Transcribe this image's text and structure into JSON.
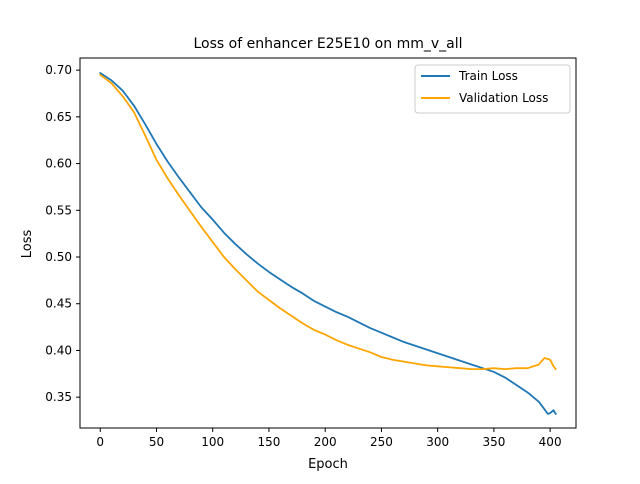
{
  "chart_data": {
    "type": "line",
    "title": "Loss of enhancer E25E10 on mm_v_all",
    "xlabel": "Epoch",
    "ylabel": "Loss",
    "xlim": [
      -18,
      423
    ],
    "ylim": [
      0.317,
      0.713
    ],
    "xticks": [
      0,
      50,
      100,
      150,
      200,
      250,
      300,
      350,
      400
    ],
    "xtick_labels": [
      "0",
      "50",
      "100",
      "150",
      "200",
      "250",
      "300",
      "350",
      "400"
    ],
    "yticks": [
      0.35,
      0.4,
      0.45,
      0.5,
      0.55,
      0.6,
      0.65,
      0.7
    ],
    "ytick_labels": [
      "0.35",
      "0.40",
      "0.45",
      "0.50",
      "0.55",
      "0.60",
      "0.65",
      "0.70"
    ],
    "grid": false,
    "legend_position": "top-right",
    "series": [
      {
        "name": "Train Loss",
        "color": "#1f77b4",
        "x": [
          0,
          10,
          20,
          30,
          40,
          50,
          60,
          70,
          80,
          90,
          100,
          110,
          120,
          130,
          140,
          150,
          160,
          170,
          180,
          190,
          200,
          210,
          220,
          230,
          240,
          250,
          260,
          270,
          280,
          290,
          300,
          310,
          320,
          330,
          340,
          350,
          360,
          370,
          380,
          390,
          395,
          398,
          400,
          403,
          405
        ],
        "y": [
          0.697,
          0.689,
          0.678,
          0.662,
          0.642,
          0.621,
          0.602,
          0.585,
          0.569,
          0.553,
          0.54,
          0.526,
          0.514,
          0.503,
          0.493,
          0.484,
          0.476,
          0.468,
          0.461,
          0.453,
          0.447,
          0.441,
          0.436,
          0.43,
          0.424,
          0.419,
          0.414,
          0.409,
          0.405,
          0.401,
          0.397,
          0.393,
          0.389,
          0.385,
          0.381,
          0.377,
          0.371,
          0.363,
          0.355,
          0.345,
          0.337,
          0.332,
          0.333,
          0.336,
          0.332
        ]
      },
      {
        "name": "Validation Loss",
        "color": "#ffa500",
        "x": [
          0,
          10,
          20,
          30,
          40,
          50,
          60,
          70,
          80,
          90,
          100,
          110,
          120,
          130,
          140,
          150,
          160,
          170,
          180,
          190,
          200,
          210,
          220,
          230,
          240,
          250,
          260,
          270,
          280,
          290,
          300,
          310,
          320,
          330,
          340,
          350,
          360,
          370,
          380,
          390,
          395,
          400,
          403,
          405
        ],
        "y": [
          0.695,
          0.686,
          0.672,
          0.655,
          0.63,
          0.604,
          0.584,
          0.566,
          0.549,
          0.532,
          0.516,
          0.5,
          0.487,
          0.475,
          0.463,
          0.454,
          0.445,
          0.437,
          0.429,
          0.422,
          0.417,
          0.411,
          0.406,
          0.402,
          0.398,
          0.393,
          0.39,
          0.388,
          0.386,
          0.384,
          0.383,
          0.382,
          0.381,
          0.38,
          0.38,
          0.381,
          0.38,
          0.381,
          0.381,
          0.385,
          0.392,
          0.39,
          0.383,
          0.38
        ]
      }
    ]
  }
}
